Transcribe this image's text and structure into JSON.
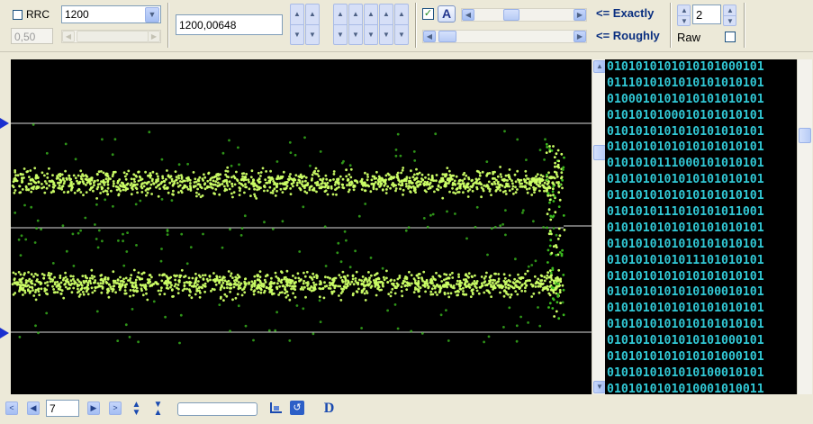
{
  "rrc": {
    "label": "RRC",
    "checked": false,
    "rolloff": "0,50"
  },
  "baud_select": {
    "value": "1200"
  },
  "freq_input": {
    "value": "1200,00648"
  },
  "auto": {
    "checked": true,
    "button_label": "A"
  },
  "exactly_label": "<= Exactly",
  "roughly_label": "<= Roughly",
  "spin_count": "2",
  "raw": {
    "label": "Raw",
    "checked": false
  },
  "bits": [
    "0101010101010101000101",
    "0111010101010101010101",
    "0100010101010101010101",
    "0101010100010101010101",
    "0101010101010101010101",
    "0101010101010101010101",
    "0101010111000101010101",
    "0101010101010101010101",
    "0101010101010101010101",
    "0101010111010101011001",
    "0101010101010101010101",
    "0101010101010101010101",
    "0101010101011101010101",
    "0101010101010101010101",
    "0101010101010100010101",
    "0101010101010101010101",
    "0101010101010101010101",
    "0101010101010101000101",
    "0101010101010101000101",
    "0101010101010100010101",
    "0101010101010001010011"
  ],
  "page_number": "7",
  "colors": {
    "scope_bg": "#000000",
    "dot_bright": "#ccff66",
    "dot_dim": "#3ab81e",
    "bits_text": "#31c9d6",
    "marker": "#1a2fd0"
  },
  "icons": {
    "nav_first": "chevron-left-icon",
    "nav_prev": "triangle-left-icon",
    "nav_next": "triangle-right-icon",
    "nav_last": "chevron-right-icon",
    "expand": "expand-vertical-icon",
    "collapse": "collapse-vertical-icon",
    "crop": "crop-icon",
    "reset": "reset-icon",
    "decoder": "letter-d-icon"
  }
}
